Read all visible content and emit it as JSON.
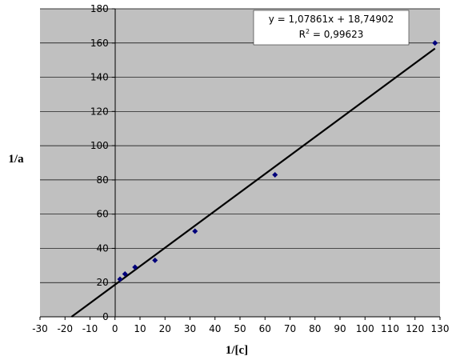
{
  "chart_data": {
    "type": "scatter",
    "title": "",
    "xlabel": "1/[c]",
    "ylabel": "1/a",
    "xlim": [
      -30,
      130
    ],
    "ylim": [
      0,
      180
    ],
    "x_ticks": [
      "-30",
      "-20",
      "-10",
      "0",
      "10",
      "20",
      "30",
      "40",
      "50",
      "60",
      "70",
      "80",
      "90",
      "100",
      "110",
      "120",
      "130"
    ],
    "y_ticks": [
      "0",
      "20",
      "40",
      "60",
      "80",
      "100",
      "120",
      "140",
      "160",
      "180"
    ],
    "grid": "horizontal",
    "legend": "none",
    "series": [
      {
        "points": [
          {
            "x": 2,
            "y": 22
          },
          {
            "x": 4,
            "y": 25
          },
          {
            "x": 8,
            "y": 29
          },
          {
            "x": 16,
            "y": 33
          },
          {
            "x": 32,
            "y": 50
          },
          {
            "x": 64,
            "y": 83
          },
          {
            "x": 128,
            "y": 160
          }
        ]
      }
    ],
    "trendline": {
      "slope": 1.07861,
      "intercept": 18.74902,
      "x_range": [
        -17.4,
        128
      ],
      "equation_text": "y = 1,07861x + 18,74902",
      "r2_label": "R",
      "r2_exponent": "2",
      "r2_value": " = 0,99623"
    },
    "colors": {
      "plot_background": "#c0c0c0",
      "gridline": "#000000",
      "marker": "#00007b",
      "trendline": "#000000"
    }
  }
}
